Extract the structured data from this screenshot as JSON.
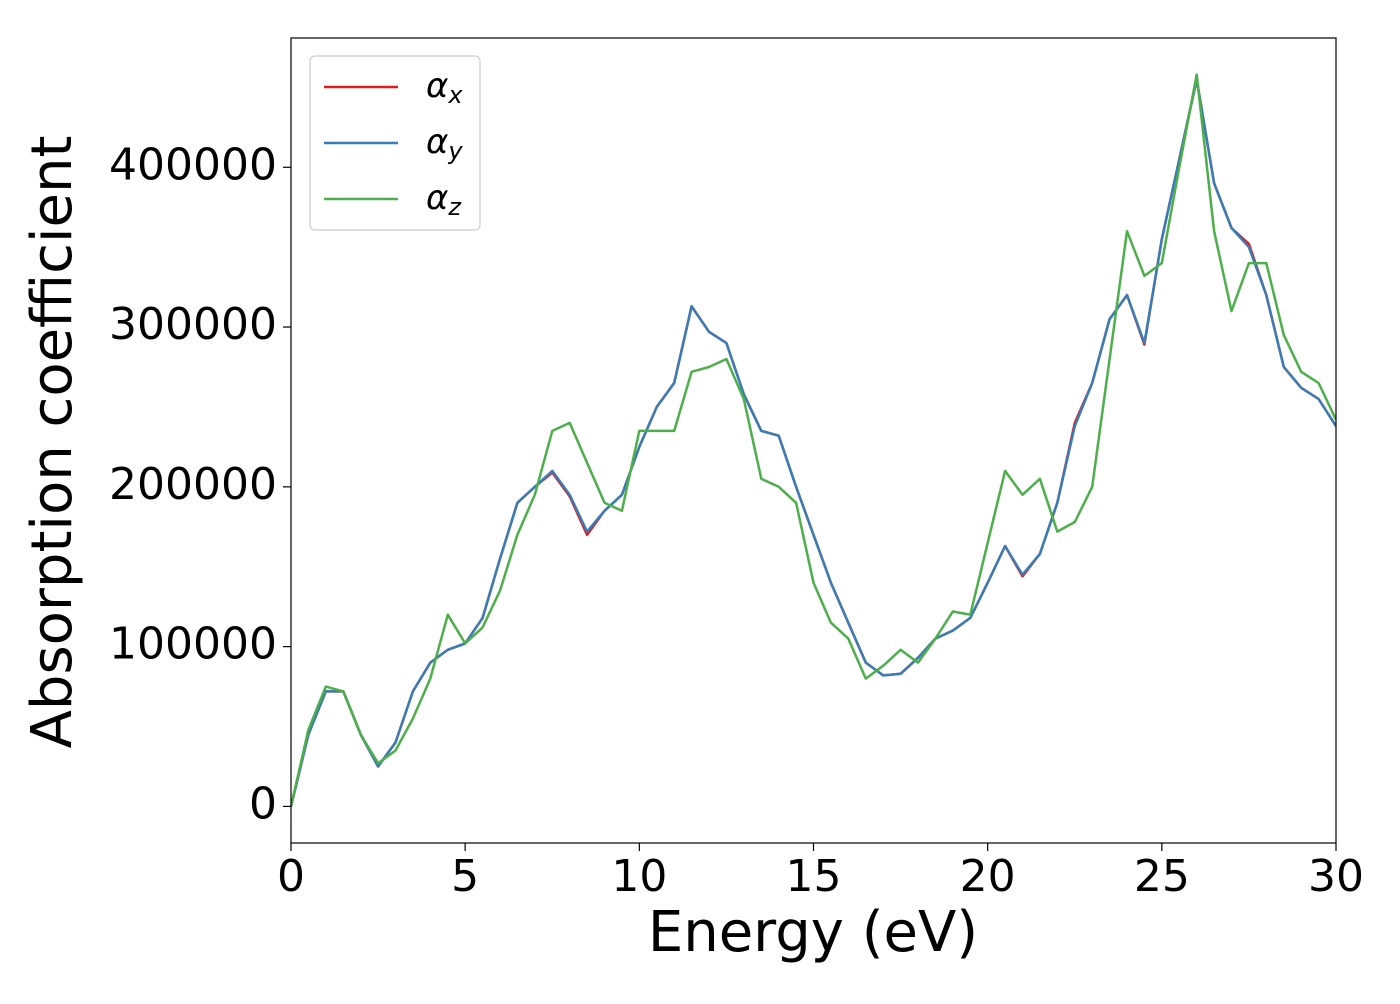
{
  "chart_data": {
    "type": "line",
    "xlabel": "Energy (eV)",
    "ylabel": "Absorption coefficient",
    "x": [
      0,
      0.5,
      1,
      1.5,
      2,
      2.5,
      3,
      3.5,
      4,
      4.5,
      5,
      5.5,
      6,
      6.5,
      7,
      7.5,
      8,
      8.5,
      9,
      9.5,
      10,
      10.5,
      11,
      11.5,
      12,
      12.5,
      13,
      13.5,
      14,
      14.5,
      15,
      15.5,
      16,
      16.5,
      17,
      17.5,
      18,
      18.5,
      19,
      19.5,
      20,
      20.5,
      21,
      21.5,
      22,
      22.5,
      23,
      23.5,
      24,
      24.5,
      25,
      25.5,
      26,
      26.5,
      27,
      27.5,
      28,
      28.5,
      29,
      29.5,
      30
    ],
    "series": [
      {
        "name": "αx",
        "color": "#e41a1c",
        "values": [
          0,
          45000,
          72000,
          72000,
          45000,
          25000,
          40000,
          72000,
          90000,
          98000,
          102000,
          118000,
          155000,
          190000,
          200000,
          209000,
          194000,
          170000,
          185000,
          195000,
          225000,
          250000,
          265000,
          313000,
          297000,
          290000,
          258000,
          235000,
          232000,
          200000,
          170000,
          140000,
          115000,
          90000,
          82000,
          83000,
          93000,
          105000,
          110000,
          118000,
          140000,
          163000,
          144000,
          158000,
          190000,
          240000,
          265000,
          305000,
          320000,
          289000,
          355000,
          405000,
          455000,
          390000,
          362000,
          352000,
          320000,
          275000,
          262000,
          255000,
          238000
        ]
      },
      {
        "name": "αy",
        "color": "#377eb8",
        "values": [
          0,
          45000,
          72000,
          72000,
          45000,
          25000,
          40000,
          72000,
          90000,
          98000,
          102000,
          118000,
          155000,
          190000,
          200000,
          210000,
          195000,
          172000,
          185000,
          195000,
          225000,
          250000,
          265000,
          313000,
          297000,
          290000,
          258000,
          235000,
          232000,
          200000,
          170000,
          140000,
          115000,
          90000,
          82000,
          83000,
          93000,
          105000,
          110000,
          118000,
          140000,
          163000,
          145000,
          158000,
          190000,
          238000,
          265000,
          305000,
          320000,
          290000,
          355000,
          405000,
          455000,
          390000,
          362000,
          350000,
          320000,
          275000,
          262000,
          255000,
          238000
        ]
      },
      {
        "name": "αz",
        "color": "#4daf4a",
        "values": [
          0,
          48000,
          75000,
          72000,
          45000,
          27000,
          35000,
          55000,
          80000,
          120000,
          102000,
          112000,
          135000,
          170000,
          195000,
          235000,
          240000,
          215000,
          190000,
          185000,
          235000,
          235000,
          235000,
          272000,
          275000,
          280000,
          255000,
          205000,
          200000,
          190000,
          140000,
          115000,
          105000,
          80000,
          88000,
          98000,
          90000,
          105000,
          122000,
          120000,
          165000,
          210000,
          195000,
          205000,
          172000,
          178000,
          200000,
          280000,
          360000,
          332000,
          340000,
          400000,
          458000,
          360000,
          310000,
          340000,
          340000,
          295000,
          272000,
          265000,
          242000
        ]
      }
    ],
    "xlim": [
      0,
      30
    ],
    "xticks": [
      0,
      5,
      10,
      15,
      20,
      25,
      30
    ],
    "ylim": [
      -22900,
      480900
    ],
    "yticks": [
      0,
      100000,
      200000,
      300000,
      400000
    ],
    "legend": "upper left"
  }
}
